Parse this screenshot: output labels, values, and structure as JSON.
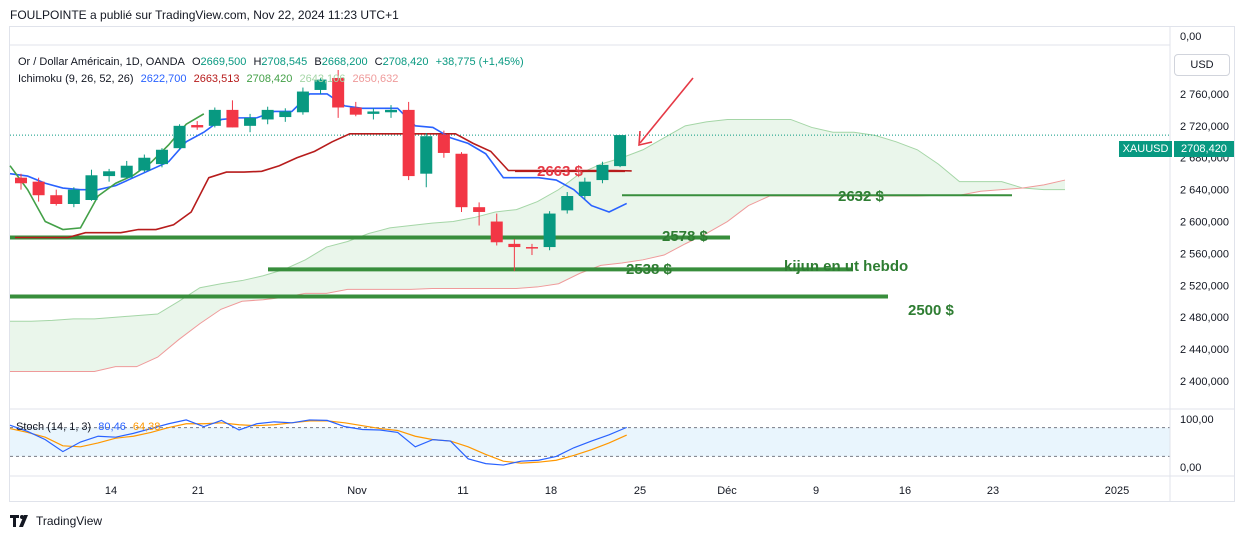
{
  "header": {
    "attribution": "FOULPOINTE a publié sur TradingView.com, Nov 22, 2024 11:23 UTC+1"
  },
  "legend": {
    "title": "Or / Dollar Américain, 1D, OANDA",
    "o_label": "O",
    "o_value": "2669,500",
    "h_label": "H",
    "h_value": "2708,545",
    "b_label": "B",
    "b_value": "2668,200",
    "c_label": "C",
    "c_value": "2708,420",
    "change": "+38,775 (+1,45%)",
    "ichimoku_label": "Ichimoku (9, 26, 52, 26)",
    "ichimoku_values": [
      "2622,700",
      "2663,513",
      "2708,420",
      "2643,106",
      "2650,632"
    ]
  },
  "stoch": {
    "label": "Stoch (14, 1, 3)",
    "k_value": "80,46",
    "d_value": "64,38",
    "axis_labels": [
      "100,00",
      "0,00"
    ]
  },
  "currency_button": "USD",
  "price_tag": {
    "symbol": "XAUUSD",
    "value": "2708,420"
  },
  "footer": {
    "brand": "TradingView"
  },
  "colors": {
    "up": "#089981",
    "down": "#f23645",
    "tenkan": "#2962ff",
    "kijun": "#b71c1c",
    "chikou": "#43a047",
    "level": "#388e3c",
    "cloud": "#e8f5e9",
    "annot_green": "#2e7d32"
  },
  "chart_data": {
    "type": "candlestick",
    "x_tick_labels": [
      "14",
      "21",
      "Nov",
      "11",
      "18",
      "25",
      "Déc",
      "9",
      "16",
      "23",
      "2025"
    ],
    "y_tick_labels": [
      "0,00",
      "2 760,000",
      "2 720,000",
      "2 680,000",
      "2 640,000",
      "2 600,000",
      "2 560,000",
      "2 520,000",
      "2 480,000",
      "2 440,000",
      "2 400,000"
    ],
    "ylim": [
      2385,
      2785
    ],
    "candles": [
      {
        "o": 2655,
        "h": 2660,
        "l": 2640,
        "c": 2648
      },
      {
        "o": 2650,
        "h": 2655,
        "l": 2625,
        "c": 2633
      },
      {
        "o": 2633,
        "h": 2640,
        "l": 2620,
        "c": 2622
      },
      {
        "o": 2622,
        "h": 2643,
        "l": 2618,
        "c": 2640
      },
      {
        "o": 2627,
        "h": 2665,
        "l": 2626,
        "c": 2658
      },
      {
        "o": 2657,
        "h": 2666,
        "l": 2650,
        "c": 2663
      },
      {
        "o": 2655,
        "h": 2676,
        "l": 2654,
        "c": 2670
      },
      {
        "o": 2664,
        "h": 2684,
        "l": 2662,
        "c": 2680
      },
      {
        "o": 2672,
        "h": 2692,
        "l": 2668,
        "c": 2690
      },
      {
        "o": 2692,
        "h": 2722,
        "l": 2690,
        "c": 2720
      },
      {
        "o": 2721,
        "h": 2726,
        "l": 2715,
        "c": 2718
      },
      {
        "o": 2720,
        "h": 2743,
        "l": 2718,
        "c": 2740
      },
      {
        "o": 2740,
        "h": 2752,
        "l": 2718,
        "c": 2718
      },
      {
        "o": 2720,
        "h": 2735,
        "l": 2712,
        "c": 2730
      },
      {
        "o": 2728,
        "h": 2744,
        "l": 2722,
        "c": 2740
      },
      {
        "o": 2731,
        "h": 2742,
        "l": 2725,
        "c": 2738
      },
      {
        "o": 2737,
        "h": 2768,
        "l": 2734,
        "c": 2763
      },
      {
        "o": 2765,
        "h": 2780,
        "l": 2760,
        "c": 2778
      },
      {
        "o": 2780,
        "h": 2790,
        "l": 2730,
        "c": 2743
      },
      {
        "o": 2743,
        "h": 2750,
        "l": 2732,
        "c": 2734
      },
      {
        "o": 2735,
        "h": 2742,
        "l": 2728,
        "c": 2738
      },
      {
        "o": 2737,
        "h": 2746,
        "l": 2730,
        "c": 2740
      },
      {
        "o": 2740,
        "h": 2750,
        "l": 2652,
        "c": 2657
      },
      {
        "o": 2660,
        "h": 2711,
        "l": 2643,
        "c": 2707
      },
      {
        "o": 2709,
        "h": 2714,
        "l": 2680,
        "c": 2686
      },
      {
        "o": 2685,
        "h": 2687,
        "l": 2612,
        "c": 2618
      },
      {
        "o": 2618,
        "h": 2624,
        "l": 2595,
        "c": 2612
      },
      {
        "o": 2600,
        "h": 2610,
        "l": 2570,
        "c": 2574
      },
      {
        "o": 2572,
        "h": 2578,
        "l": 2538,
        "c": 2568
      },
      {
        "o": 2568,
        "h": 2572,
        "l": 2558,
        "c": 2567
      },
      {
        "o": 2568,
        "h": 2613,
        "l": 2564,
        "c": 2610
      },
      {
        "o": 2614,
        "h": 2637,
        "l": 2610,
        "c": 2632
      },
      {
        "o": 2632,
        "h": 2655,
        "l": 2628,
        "c": 2650
      },
      {
        "o": 2652,
        "h": 2675,
        "l": 2648,
        "c": 2671
      },
      {
        "o": 2669.5,
        "h": 2708.545,
        "l": 2668.2,
        "c": 2708.42
      }
    ],
    "tenkan": [
      2660,
      2657,
      2648,
      2642,
      2640,
      2640,
      2645,
      2655,
      2665,
      2675,
      2700,
      2712,
      2728,
      2730,
      2730,
      2738,
      2738,
      2760,
      2760,
      2745,
      2742,
      2742,
      2742,
      2720,
      2718,
      2705,
      2698,
      2685,
      2655,
      2655,
      2655,
      2652,
      2640,
      2620,
      2612,
      2622.7
    ],
    "kijun": [
      2580,
      2580,
      2580,
      2580,
      2586,
      2586,
      2586,
      2590,
      2590,
      2596,
      2612,
      2655,
      2662,
      2662,
      2663,
      2670,
      2680,
      2688,
      2700,
      2710,
      2710,
      2710,
      2710,
      2710,
      2710,
      2710,
      2698,
      2688,
      2664,
      2664,
      2664,
      2664,
      2664,
      2664,
      2664,
      2663.5
    ],
    "chikou": [
      2670,
      2640,
      2600,
      2590,
      2592,
      2632,
      2648,
      2658,
      2674,
      2696,
      2722,
      2735
    ],
    "cloud_upper": [
      2475,
      2475,
      2476,
      2478,
      2478,
      2480,
      2482,
      2484,
      2500,
      2517,
      2522,
      2526,
      2532,
      2540,
      2552,
      2568,
      2575,
      2585,
      2592,
      2595,
      2598,
      2600,
      2605,
      2612,
      2615,
      2625,
      2640,
      2660,
      2672,
      2680,
      2690,
      2705,
      2720,
      2725,
      2728,
      2728,
      2728,
      2728,
      2718,
      2712,
      2712,
      2708,
      2700,
      2690,
      2672,
      2650,
      2650,
      2650,
      2642,
      2640,
      2640
    ],
    "cloud_lower": [
      2412,
      2412,
      2412,
      2412,
      2412,
      2418,
      2418,
      2430,
      2452,
      2472,
      2490,
      2500,
      2502,
      2505,
      2510,
      2510,
      2515,
      2515,
      2515,
      2515,
      2516,
      2516,
      2516,
      2516,
      2516,
      2518,
      2522,
      2535,
      2545,
      2548,
      2552,
      2558,
      2572,
      2585,
      2600,
      2620,
      2632,
      2632,
      2632,
      2632,
      2632,
      2632,
      2632,
      2632,
      2633,
      2633,
      2638,
      2640,
      2642,
      2646,
      2652
    ],
    "levels": [
      {
        "value": 2580,
        "label": "2578 $"
      },
      {
        "value": 2540,
        "label": "2538 $"
      },
      {
        "value": 2506,
        "label": "2500 $"
      },
      {
        "value": 2633,
        "label": "2632 $"
      }
    ],
    "annotations": [
      {
        "text": "2663 $"
      },
      {
        "text": "kijun en ut hebdo"
      }
    ],
    "last_price": 2708.42,
    "stoch": {
      "ylim": [
        0,
        100
      ],
      "bands": [
        80,
        20
      ],
      "k": [
        85,
        72,
        55,
        30,
        50,
        62,
        60,
        68,
        78,
        88,
        96,
        82,
        95,
        75,
        88,
        92,
        90,
        96,
        95,
        82,
        76,
        75,
        70,
        40,
        55,
        52,
        15,
        5,
        2,
        10,
        12,
        20,
        38,
        52,
        65,
        80.46
      ],
      "d": [
        78,
        70,
        60,
        42,
        40,
        48,
        58,
        62,
        70,
        80,
        88,
        88,
        90,
        86,
        84,
        86,
        90,
        94,
        94,
        90,
        84,
        78,
        74,
        62,
        55,
        52,
        40,
        24,
        10,
        6,
        8,
        12,
        22,
        34,
        48,
        64.38
      ]
    }
  }
}
